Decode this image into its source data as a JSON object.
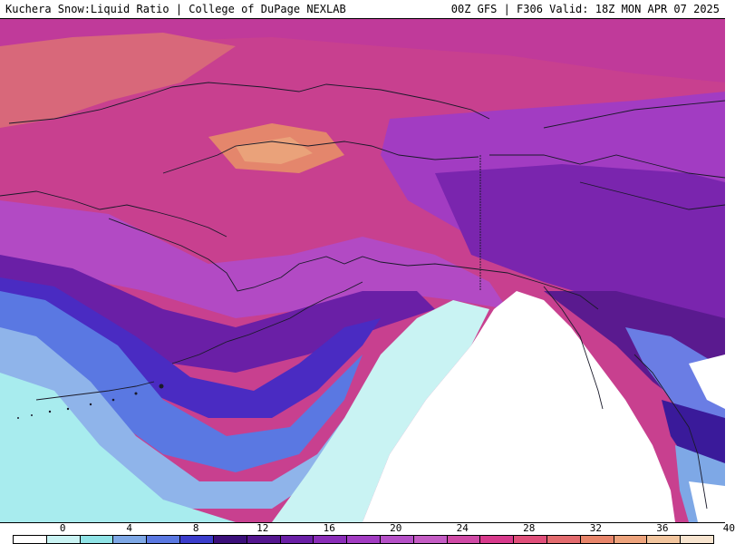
{
  "header": {
    "left_title": "Kuchera Snow:Liquid Ratio | College of DuPage NEXLAB",
    "right_title": "00Z GFS | F306 Valid: 18Z MON APR 07 2025"
  },
  "legend": {
    "labels": [
      "0",
      "4",
      "8",
      "12",
      "16",
      "20",
      "24",
      "28",
      "32",
      "36",
      "40"
    ],
    "colors": [
      "#ffffff",
      "#c9f3f3",
      "#8fe3e6",
      "#7ea8e6",
      "#5a78e2",
      "#3b3dcc",
      "#3b0f7a",
      "#54168f",
      "#6a1fa6",
      "#8a2db8",
      "#a23cc2",
      "#b550c7",
      "#c45cc4",
      "#d04aa6",
      "#d83a8c",
      "#e04f7a",
      "#e36b6e",
      "#e8856a",
      "#eda37c",
      "#f2c59e",
      "#f7e4cf"
    ]
  },
  "map": {
    "region": "Alaska and North Pacific",
    "colors": {
      "ocean_low": "#ffffff",
      "cyan": "#a8ecee",
      "light_blue": "#7ea8e6",
      "blue": "#4a55d8",
      "indigo": "#3a1a9a",
      "deep_purple": "#5a1a8f",
      "purple": "#8a2db8",
      "violet": "#b24ac4",
      "magenta": "#c8408f",
      "pink": "#d8607c",
      "salmon": "#e4866c",
      "peach": "#eaa27a"
    }
  }
}
